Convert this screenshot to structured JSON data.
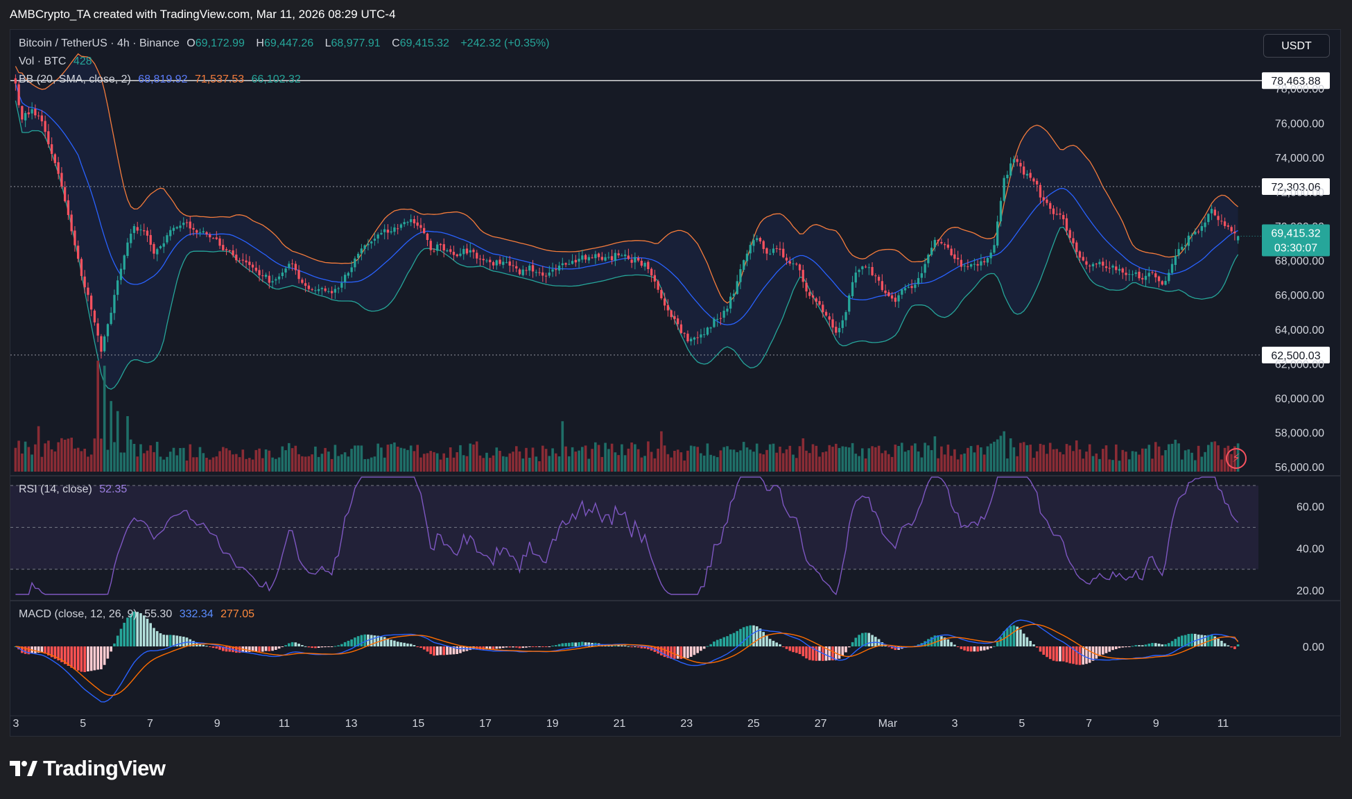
{
  "header": {
    "credit": "AMBCrypto_TA created with TradingView.com, Mar 11, 2026 08:29 UTC-4"
  },
  "legend": {
    "symbol": "Bitcoin / TetherUS · 4h · Binance",
    "o_label": "O",
    "o": "69,172.99",
    "h_label": "H",
    "h": "69,447.26",
    "l_label": "L",
    "l": "68,977.91",
    "c_label": "C",
    "c": "69,415.32",
    "change": "+242.32 (+0.35%)",
    "vol_label": "Vol · BTC",
    "vol": "428",
    "bb_label": "BB (20, SMA, close, 2)",
    "bb_basis": "68,819.92",
    "bb_upper": "71,537.53",
    "bb_lower": "66,102.32",
    "rsi_label": "RSI (14, close)",
    "rsi": "52.35",
    "macd_label": "MACD (close, 12, 26, 9)",
    "macd_hist": "55.30",
    "macd": "332.34",
    "macd_signal": "277.05"
  },
  "currency_button": "USDT",
  "brand": "TradingView",
  "colors": {
    "bull": "#26a69a",
    "bear": "#f7525f",
    "bb_basis": "#2962ff",
    "bb_upper": "#f57c3c",
    "bb_lower": "#26a69a",
    "rsi": "#7e57c2",
    "macd": "#2962ff",
    "signal": "#ff6d00"
  },
  "chart_data": [
    {
      "type": "candlestick",
      "interval": "4h",
      "x_ticks": [
        "3",
        "5",
        "7",
        "9",
        "11",
        "13",
        "15",
        "17",
        "19",
        "21",
        "23",
        "25",
        "27",
        "Mar",
        "3",
        "5",
        "7",
        "9",
        "11"
      ],
      "y_ticks": [
        "56,000.00",
        "58,000.00",
        "60,000.00",
        "62,000.00",
        "64,000.00",
        "66,000.00",
        "68,000.00",
        "70,000.00",
        "72,000.00",
        "74,000.00",
        "76,000.00",
        "78,000.00"
      ],
      "ylim": [
        55800,
        79200
      ],
      "price_lines": [
        {
          "label": "78,463.88",
          "value": 78463.88
        },
        {
          "label": "72,303.06",
          "value": 72303.06
        },
        {
          "label": "62,500.03",
          "value": 62500.03
        }
      ],
      "last_price": {
        "label": "69,415.32",
        "countdown": "03:30:07",
        "value": 69415.32
      },
      "anchors": [
        [
          0,
          78300
        ],
        [
          2,
          76200
        ],
        [
          5,
          76800
        ],
        [
          8,
          76100
        ],
        [
          11,
          74200
        ],
        [
          14,
          72300
        ],
        [
          17,
          69700
        ],
        [
          20,
          67100
        ],
        [
          22,
          66000
        ],
        [
          24,
          64400
        ],
        [
          26,
          62700
        ],
        [
          28,
          64300
        ],
        [
          30,
          66000
        ],
        [
          33,
          68300
        ],
        [
          36,
          70000
        ],
        [
          39,
          69700
        ],
        [
          42,
          68400
        ],
        [
          45,
          69000
        ],
        [
          48,
          69900
        ],
        [
          51,
          70200
        ],
        [
          54,
          69800
        ],
        [
          57,
          69700
        ],
        [
          60,
          69300
        ],
        [
          63,
          68600
        ],
        [
          66,
          68300
        ],
        [
          69,
          68000
        ],
        [
          72,
          67600
        ],
        [
          75,
          67100
        ],
        [
          78,
          66800
        ],
        [
          81,
          67300
        ],
        [
          84,
          67800
        ],
        [
          87,
          66700
        ],
        [
          90,
          66300
        ],
        [
          93,
          66400
        ],
        [
          96,
          66100
        ],
        [
          99,
          66700
        ],
        [
          102,
          67600
        ],
        [
          105,
          68700
        ],
        [
          108,
          69100
        ],
        [
          111,
          69600
        ],
        [
          114,
          69700
        ],
        [
          117,
          70100
        ],
        [
          120,
          70400
        ],
        [
          123,
          69900
        ],
        [
          126,
          68600
        ],
        [
          129,
          68900
        ],
        [
          132,
          68500
        ],
        [
          135,
          68400
        ],
        [
          138,
          68600
        ],
        [
          141,
          68100
        ],
        [
          144,
          67900
        ],
        [
          147,
          67800
        ],
        [
          150,
          67700
        ],
        [
          153,
          67200
        ],
        [
          156,
          67700
        ],
        [
          159,
          67300
        ],
        [
          162,
          67300
        ],
        [
          165,
          67700
        ],
        [
          168,
          67800
        ],
        [
          171,
          68100
        ],
        [
          174,
          68200
        ],
        [
          177,
          68200
        ],
        [
          180,
          68200
        ],
        [
          183,
          68300
        ],
        [
          186,
          68100
        ],
        [
          189,
          68000
        ],
        [
          192,
          67500
        ],
        [
          195,
          66300
        ],
        [
          198,
          65100
        ],
        [
          201,
          64300
        ],
        [
          204,
          63300
        ],
        [
          207,
          63500
        ],
        [
          210,
          64100
        ],
        [
          213,
          64600
        ],
        [
          216,
          65200
        ],
        [
          219,
          66800
        ],
        [
          222,
          68400
        ],
        [
          225,
          69300
        ],
        [
          228,
          68400
        ],
        [
          231,
          68700
        ],
        [
          234,
          68000
        ],
        [
          237,
          67800
        ],
        [
          240,
          66200
        ],
        [
          243,
          65600
        ],
        [
          246,
          64800
        ],
        [
          249,
          63800
        ],
        [
          252,
          65000
        ],
        [
          255,
          67300
        ],
        [
          258,
          67600
        ],
        [
          261,
          67100
        ],
        [
          264,
          66100
        ],
        [
          267,
          65600
        ],
        [
          270,
          66400
        ],
        [
          273,
          66600
        ],
        [
          276,
          67800
        ],
        [
          279,
          69200
        ],
        [
          282,
          68900
        ],
        [
          285,
          68100
        ],
        [
          288,
          67700
        ],
        [
          291,
          67800
        ],
        [
          294,
          67900
        ],
        [
          297,
          68900
        ],
        [
          300,
          72800
        ],
        [
          303,
          73900
        ],
        [
          306,
          73000
        ],
        [
          309,
          72600
        ],
        [
          312,
          71500
        ],
        [
          315,
          70700
        ],
        [
          318,
          70400
        ],
        [
          321,
          69000
        ],
        [
          324,
          68000
        ],
        [
          327,
          67800
        ],
        [
          330,
          67700
        ],
        [
          333,
          67700
        ],
        [
          336,
          67300
        ],
        [
          339,
          67200
        ],
        [
          342,
          66900
        ],
        [
          345,
          67300
        ],
        [
          348,
          66600
        ],
        [
          351,
          67800
        ],
        [
          354,
          68800
        ],
        [
          357,
          69500
        ],
        [
          360,
          70000
        ],
        [
          363,
          71000
        ],
        [
          366,
          70300
        ],
        [
          369,
          69700
        ],
        [
          371,
          69415
        ]
      ],
      "volume": {
        "spikes": [
          [
            25,
            2200
          ],
          [
            27,
            2100
          ],
          [
            29,
            1400
          ],
          [
            31,
            1200
          ],
          [
            34,
            1100
          ],
          [
            196,
            800
          ],
          [
            166,
            1000
          ],
          [
            7,
            900
          ],
          [
            300,
            800
          ],
          [
            279,
            700
          ]
        ]
      },
      "bollinger": {
        "period": 20,
        "mult": 2,
        "basis_last": 68819.92,
        "upper_last": 71537.53,
        "lower_last": 66102.32
      }
    },
    {
      "type": "line",
      "name": "RSI (14, close)",
      "last": 52.35,
      "y_ticks": [
        "20.00",
        "40.00",
        "60.00"
      ],
      "ylim": [
        17,
        70
      ],
      "bands": [
        30,
        50,
        70
      ]
    },
    {
      "type": "bar",
      "name": "MACD (close, 12, 26, 9)",
      "last_hist": 55.3,
      "last_macd": 332.34,
      "last_signal": 277.05,
      "y_ticks": [
        "0.00"
      ]
    }
  ]
}
